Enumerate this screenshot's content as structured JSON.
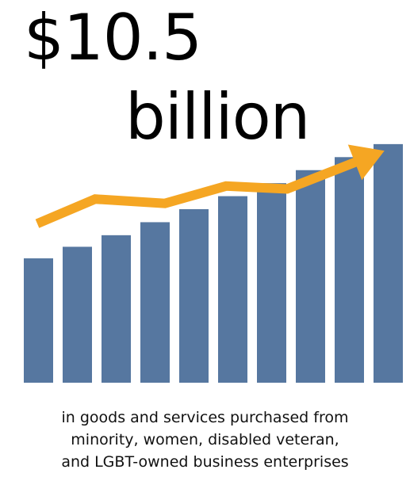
{
  "headline": {
    "amount": "$10.5",
    "unit": "billion"
  },
  "caption": {
    "line1": "in goods and services purchased from",
    "line2": "minority, women, disabled veteran,",
    "line3": "and LGBT-owned business enterprises"
  },
  "graphic": {
    "type": "bar",
    "bar_color": "#5677a0",
    "arrow_color": "#f5a623",
    "bar_count": 10,
    "bar_levels": [
      0.43,
      0.47,
      0.51,
      0.555,
      0.6,
      0.645,
      0.69,
      0.735,
      0.78,
      0.825
    ],
    "trend_levels": [
      0.55,
      0.635,
      0.62,
      0.68,
      0.67,
      0.77
    ]
  }
}
